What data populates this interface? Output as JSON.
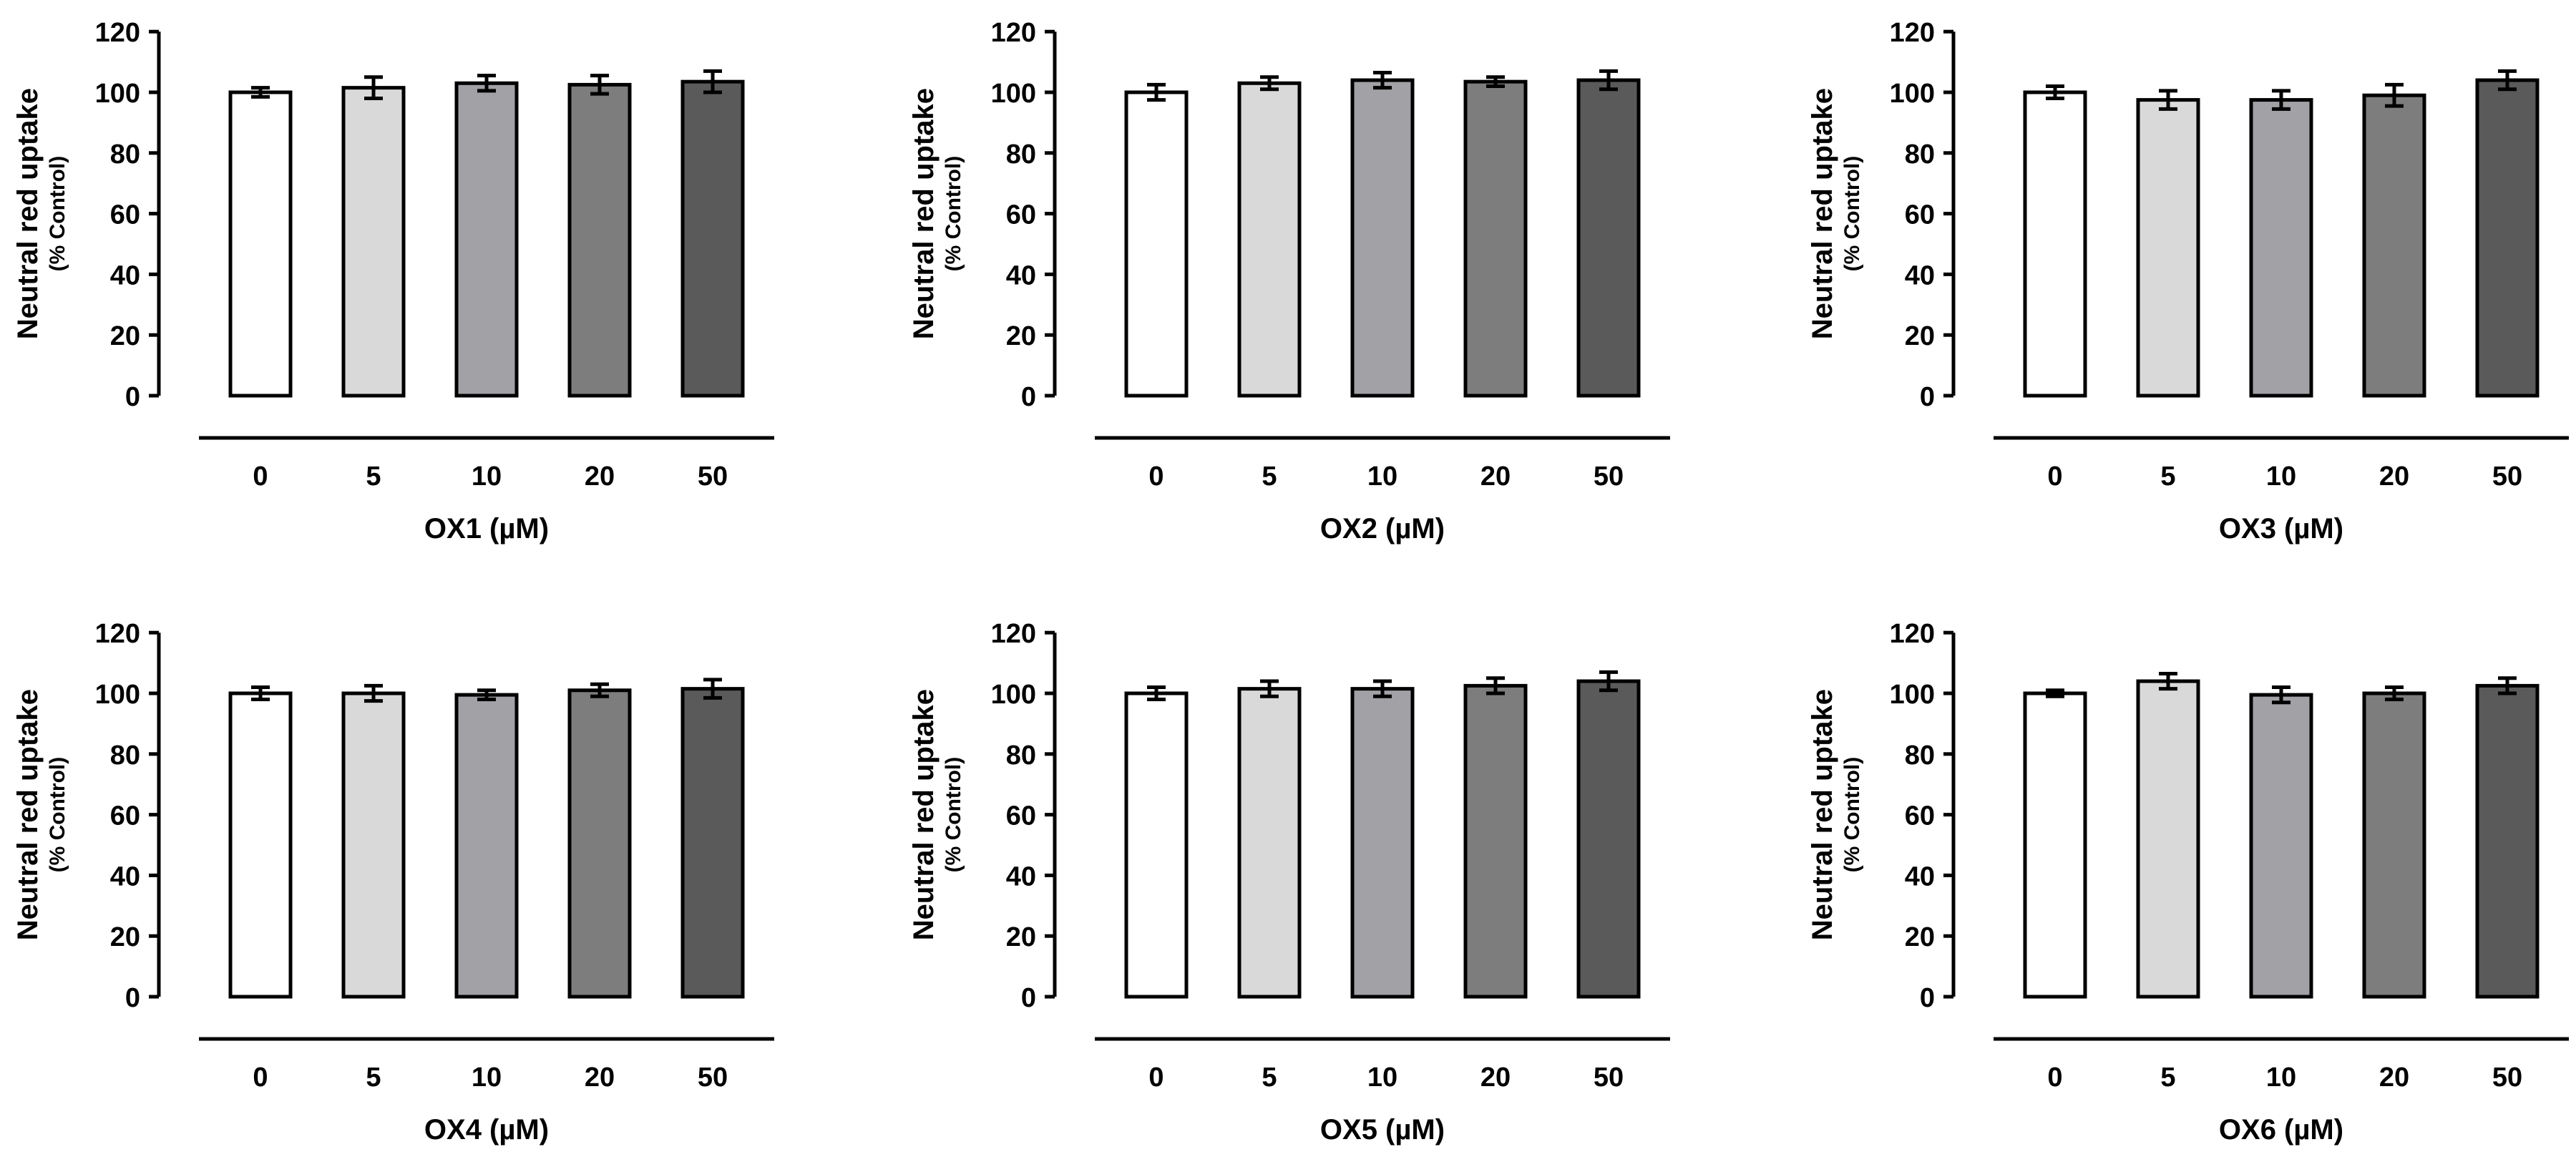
{
  "bar_fills": [
    "#ffffff",
    "#d9d9d9",
    "#a1a1a6",
    "#7d7d7d",
    "#5a5a5a"
  ],
  "bar_stroke": "#000000",
  "chart_data": [
    {
      "type": "bar",
      "title": "",
      "ylabel": "Neutral red uptake",
      "ylabel_sub": "(% Control)",
      "xlabel": "OX1 (µM)",
      "categories": [
        "0",
        "5",
        "10",
        "20",
        "50"
      ],
      "values": [
        100,
        101.5,
        103,
        102.5,
        103.5
      ],
      "errors": [
        1.5,
        3.5,
        2.5,
        3,
        3.5
      ],
      "ylim": [
        0,
        120
      ],
      "yticks": [
        "0",
        "20",
        "40",
        "60",
        "80",
        "100",
        "120"
      ]
    },
    {
      "type": "bar",
      "title": "",
      "ylabel": "Neutral red uptake",
      "ylabel_sub": "(% Control)",
      "xlabel": "OX2 (µM)",
      "categories": [
        "0",
        "5",
        "10",
        "20",
        "50"
      ],
      "values": [
        100,
        103,
        104,
        103.5,
        104
      ],
      "errors": [
        2.5,
        2,
        2.5,
        1.5,
        3
      ],
      "ylim": [
        0,
        120
      ],
      "yticks": [
        "0",
        "20",
        "40",
        "60",
        "80",
        "100",
        "120"
      ]
    },
    {
      "type": "bar",
      "title": "",
      "ylabel": "Neutral red uptake",
      "ylabel_sub": "(% Control)",
      "xlabel": "OX3 (µM)",
      "categories": [
        "0",
        "5",
        "10",
        "20",
        "50"
      ],
      "values": [
        100,
        97.5,
        97.5,
        99,
        104
      ],
      "errors": [
        2,
        3,
        3,
        3.5,
        3
      ],
      "ylim": [
        0,
        120
      ],
      "yticks": [
        "0",
        "20",
        "40",
        "60",
        "80",
        "100",
        "120"
      ]
    },
    {
      "type": "bar",
      "title": "",
      "ylabel": "Neutral red uptake",
      "ylabel_sub": "(% Control)",
      "xlabel": "OX4 (µM)",
      "categories": [
        "0",
        "5",
        "10",
        "20",
        "50"
      ],
      "values": [
        100,
        100,
        99.5,
        101,
        101.5
      ],
      "errors": [
        2,
        2.5,
        1.5,
        2,
        3
      ],
      "ylim": [
        0,
        120
      ],
      "yticks": [
        "0",
        "20",
        "40",
        "60",
        "80",
        "100",
        "120"
      ]
    },
    {
      "type": "bar",
      "title": "",
      "ylabel": "Neutral red uptake",
      "ylabel_sub": "(% Control)",
      "xlabel": "OX5 (µM)",
      "categories": [
        "0",
        "5",
        "10",
        "20",
        "50"
      ],
      "values": [
        100,
        101.5,
        101.5,
        102.5,
        104
      ],
      "errors": [
        2,
        2.5,
        2.5,
        2.5,
        3
      ],
      "ylim": [
        0,
        120
      ],
      "yticks": [
        "0",
        "20",
        "40",
        "60",
        "80",
        "100",
        "120"
      ]
    },
    {
      "type": "bar",
      "title": "",
      "ylabel": "Neutral red uptake",
      "ylabel_sub": "(% Control)",
      "xlabel": "OX6 (µM)",
      "categories": [
        "0",
        "5",
        "10",
        "20",
        "50"
      ],
      "values": [
        100,
        104,
        99.5,
        100,
        102.5
      ],
      "errors": [
        1,
        2.5,
        2.5,
        2,
        2.5
      ],
      "ylim": [
        0,
        120
      ],
      "yticks": [
        "0",
        "20",
        "40",
        "60",
        "80",
        "100",
        "120"
      ]
    }
  ]
}
